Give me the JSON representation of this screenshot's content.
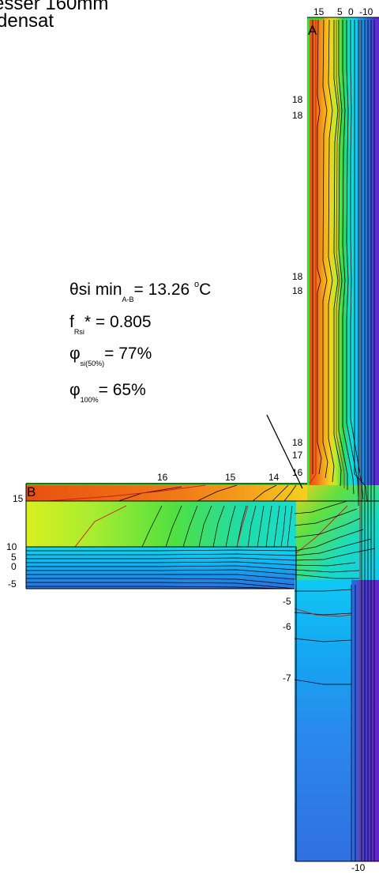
{
  "title": {
    "line1": "esser 160mm",
    "line2": "densat"
  },
  "corner_labels": {
    "a": "A",
    "b": "B"
  },
  "top_ticks": [
    "15",
    "5",
    "0",
    "-10"
  ],
  "bottom_tick": "-10",
  "wall_inner_labels": [
    "18",
    "18",
    "18",
    "18",
    "18",
    "17",
    "16"
  ],
  "slab_top_labels": [
    "16",
    "15",
    "14"
  ],
  "slab_left_labels": [
    "15",
    "10",
    "5",
    "0",
    "-5"
  ],
  "below_labels": [
    "-5",
    "-6",
    "-7"
  ],
  "annotations": {
    "theta_sym": "θ",
    "theta_text": "si min",
    "theta_sub": "A-B",
    "theta_value": "= 13.26",
    "theta_deg": "o",
    "theta_unit": "C",
    "f_text": "f",
    "f_sub": "Rsi",
    "f_value": "* = 0.805",
    "phi_sym": "φ",
    "phi50_sub": "si(50%)",
    "phi50_value": "= 77%",
    "phi100_sub": "100%",
    "phi100_value": "= 65%"
  },
  "colors": {
    "hot": "#e85010",
    "orange": "#f07a18",
    "yellow": "#f4d21c",
    "lime": "#b8ec30",
    "green": "#30d848",
    "teal": "#18dcc0",
    "cyan": "#10d8f0",
    "sky": "#10a8f4",
    "blue": "#2a6ee0",
    "violet": "#6a20d0",
    "edge_green": "#40dc30"
  }
}
